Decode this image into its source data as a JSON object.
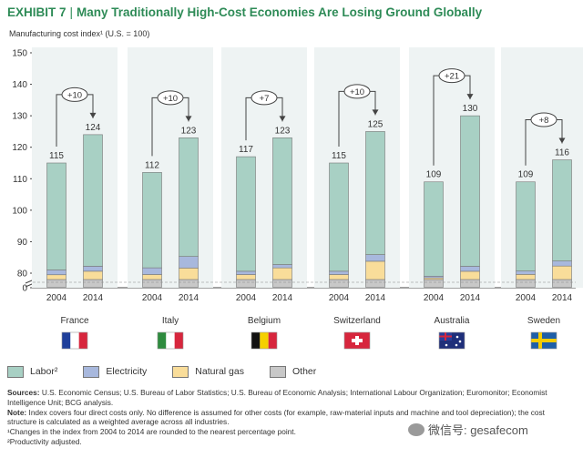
{
  "title": {
    "exhibit": "EXHIBIT 7",
    "separator": "|",
    "text": "Many Traditionally High-Cost Economies Are Losing Ground Globally"
  },
  "colors": {
    "labor": "#a8d0c4",
    "electricity": "#a8b8dd",
    "natural_gas": "#f9dd9a",
    "other": "#c8c8c8",
    "title": "#2e8b57",
    "axis": "#444444"
  },
  "chart_data": {
    "type": "bar",
    "ylabel": "Manufacturing cost index¹ (U.S. = 100)",
    "ylim": [
      0,
      150
    ],
    "yticks": [
      150,
      140,
      130,
      120,
      110,
      100,
      90,
      80,
      0
    ],
    "axis_break": true,
    "countries": [
      {
        "name": "France",
        "flag": "france-flag",
        "delta": "+10",
        "bars": [
          {
            "year": "2004",
            "total": 115,
            "labor": 33.5,
            "electricity": 1.5,
            "natural_gas": 1.5,
            "other": 0.5
          },
          {
            "year": "2014",
            "total": 124,
            "labor": 39.5,
            "electricity": 1.5,
            "natural_gas": 2.5,
            "other": 0.5
          }
        ]
      },
      {
        "name": "Italy",
        "flag": "italy-flag",
        "delta": "+10",
        "bars": [
          {
            "year": "2004",
            "total": 112,
            "labor": 28.5,
            "electricity": 2.0,
            "natural_gas": 1.5,
            "other": 0.5
          },
          {
            "year": "2014",
            "total": 123,
            "labor": 36.0,
            "electricity": 3.5,
            "natural_gas": 3.5,
            "other": 0.5
          }
        ]
      },
      {
        "name": "Belgium",
        "flag": "belgium-flag",
        "delta": "+7",
        "bars": [
          {
            "year": "2004",
            "total": 117,
            "labor": 34.5,
            "electricity": 1.0,
            "natural_gas": 1.5,
            "other": 0.5
          },
          {
            "year": "2014",
            "total": 123,
            "labor": 38.0,
            "electricity": 1.0,
            "natural_gas": 3.5,
            "other": 0.5
          }
        ]
      },
      {
        "name": "Switzerland",
        "flag": "switzerland-flag",
        "delta": "+10",
        "bars": [
          {
            "year": "2004",
            "total": 115,
            "labor": 32.5,
            "electricity": 1.0,
            "natural_gas": 1.5,
            "other": 0.5
          },
          {
            "year": "2014",
            "total": 125,
            "labor": 37.0,
            "electricity": 2.0,
            "natural_gas": 5.5,
            "other": 0.5
          }
        ]
      },
      {
        "name": "Australia",
        "flag": "australia-flag",
        "delta": "+21",
        "bars": [
          {
            "year": "2004",
            "total": 109,
            "labor": 28.0,
            "electricity": 0.5,
            "natural_gas": 0.5,
            "other": 0.5
          },
          {
            "year": "2014",
            "total": 130,
            "labor": 45.5,
            "electricity": 1.5,
            "natural_gas": 2.5,
            "other": 0.5
          }
        ]
      },
      {
        "name": "Sweden",
        "flag": "sweden-flag",
        "delta": "+8",
        "bars": [
          {
            "year": "2004",
            "total": 109,
            "labor": 26.0,
            "electricity": 1.0,
            "natural_gas": 1.5,
            "other": 0.5
          },
          {
            "year": "2014",
            "total": 116,
            "labor": 30.0,
            "electricity": 1.5,
            "natural_gas": 4.0,
            "other": 0.5
          }
        ]
      }
    ],
    "legend": [
      {
        "key": "labor",
        "label": "Labor²"
      },
      {
        "key": "electricity",
        "label": "Electricity"
      },
      {
        "key": "natural_gas",
        "label": "Natural gas"
      },
      {
        "key": "other",
        "label": "Other"
      }
    ]
  },
  "notes": {
    "sources_label": "Sources:",
    "sources": "U.S. Economic Census; U.S. Bureau of Labor Statistics; U.S. Bureau of Economic Analysis; International Labour Organization; Euromonitor; Economist Intelligence Unit; BCG analysis.",
    "note_label": "Note:",
    "note": "Index covers four direct costs only. No difference is assumed for other costs (for example, raw-material inputs and machine and tool depreciation); the cost structure is calculated as a weighted average across all industries.",
    "footnote1": "¹Changes in the index from 2004 to 2014 are rounded to the nearest percentage point.",
    "footnote2": "²Productivity adjusted."
  },
  "watermark": {
    "text": "微信号: gesafecom"
  }
}
